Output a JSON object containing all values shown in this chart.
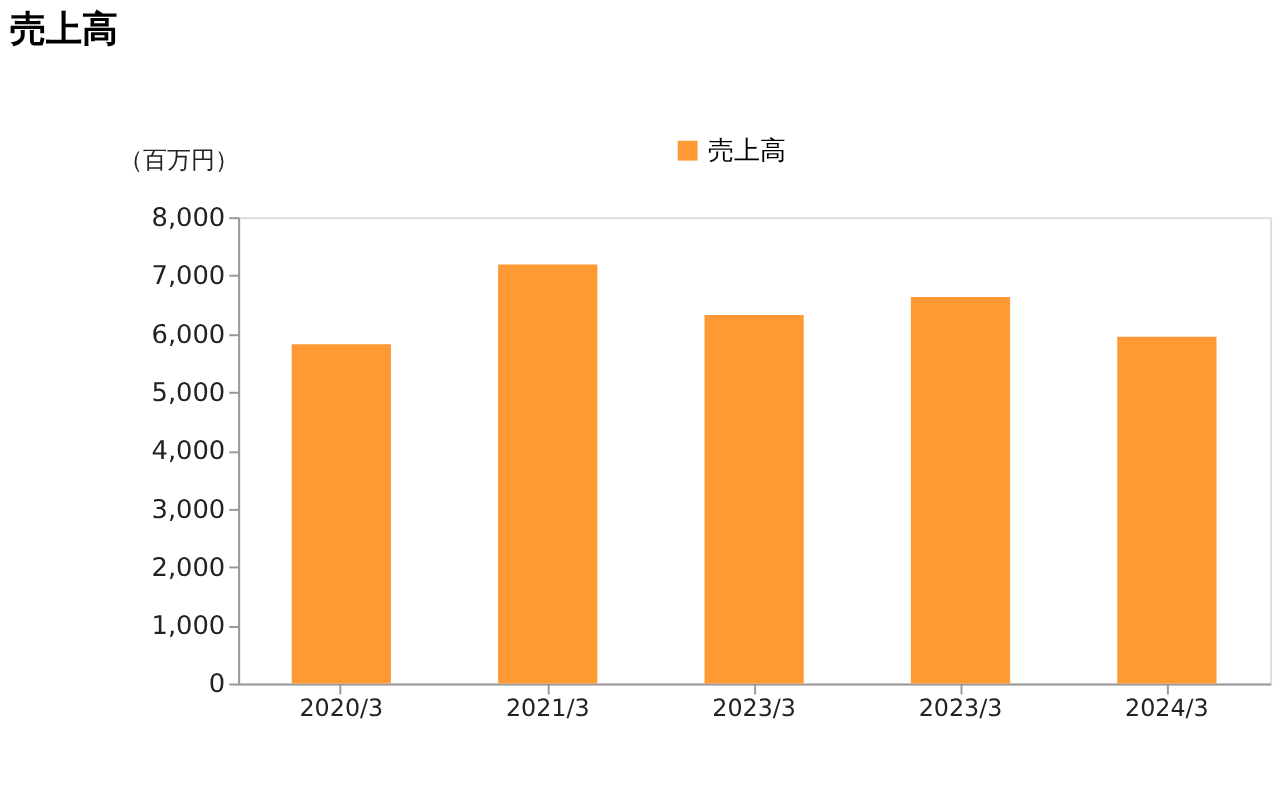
{
  "chart_data": {
    "type": "bar",
    "title": "売上高",
    "ylabel": "（百万円）",
    "categories": [
      "2020/3",
      "2021/3",
      "2023/3",
      "2023/3",
      "2024/3"
    ],
    "series": [
      {
        "name": "売上高",
        "color": "#ff9933",
        "values": [
          5820,
          7190,
          6320,
          6630,
          5950
        ]
      }
    ],
    "ylim": [
      0,
      8000
    ],
    "yticks": [
      0,
      {
        "value": 1000,
        "label": "1,000"
      },
      {
        "value": 2000,
        "label": "2,000"
      },
      {
        "value": 3000,
        "label": "3,000"
      },
      {
        "value": 4000,
        "label": "4,000"
      },
      {
        "value": 5000,
        "label": "5,000"
      },
      {
        "value": 6000,
        "label": "6,000"
      },
      {
        "value": 7000,
        "label": "7,000"
      },
      {
        "value": 8000,
        "label": "8,000"
      }
    ],
    "grid": false,
    "legend": "top"
  }
}
